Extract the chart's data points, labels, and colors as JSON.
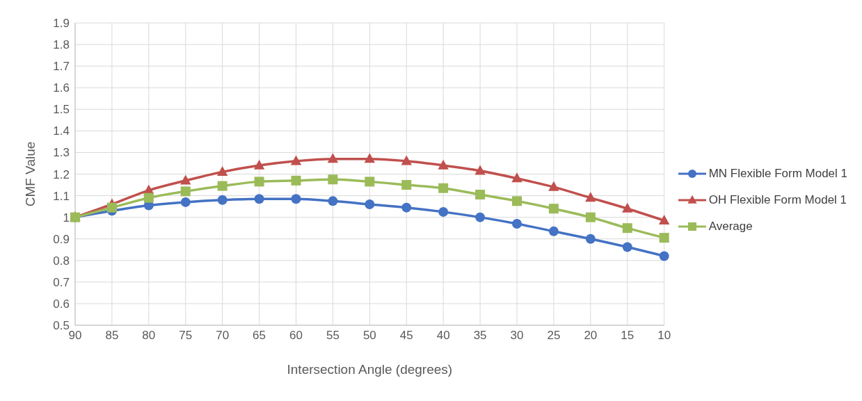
{
  "chart_data": {
    "type": "line",
    "xlabel": "Intersection Angle (degrees)",
    "ylabel": "CMF Value",
    "categories": [
      "90",
      "85",
      "80",
      "75",
      "70",
      "65",
      "60",
      "55",
      "50",
      "45",
      "40",
      "35",
      "30",
      "25",
      "20",
      "15",
      "10"
    ],
    "series": [
      {
        "name": "MN Flexible Form Model 1",
        "color": "#4472c4",
        "marker": "circle",
        "values": [
          1.0,
          1.03,
          1.055,
          1.07,
          1.08,
          1.085,
          1.085,
          1.075,
          1.06,
          1.045,
          1.025,
          1.0,
          0.97,
          0.935,
          0.9,
          0.862,
          0.82
        ]
      },
      {
        "name": "OH Flexible Form Model 1",
        "color": "#c0504d",
        "marker": "triangle",
        "values": [
          1.0,
          1.06,
          1.125,
          1.17,
          1.21,
          1.24,
          1.26,
          1.27,
          1.27,
          1.26,
          1.24,
          1.215,
          1.18,
          1.14,
          1.09,
          1.04,
          0.985
        ]
      },
      {
        "name": "Average",
        "color": "#9bbb59",
        "marker": "square",
        "values": [
          1.0,
          1.045,
          1.09,
          1.12,
          1.145,
          1.165,
          1.17,
          1.175,
          1.165,
          1.15,
          1.135,
          1.105,
          1.075,
          1.04,
          1.0,
          0.95,
          0.905
        ]
      }
    ],
    "ylim": [
      0.5,
      1.9
    ],
    "yticks": [
      0.5,
      0.6,
      0.7,
      0.8,
      0.9,
      1,
      1.1,
      1.2,
      1.3,
      1.4,
      1.5,
      1.6,
      1.7,
      1.8,
      1.9
    ],
    "grid": true,
    "legend": "right",
    "line_style": "solid"
  }
}
